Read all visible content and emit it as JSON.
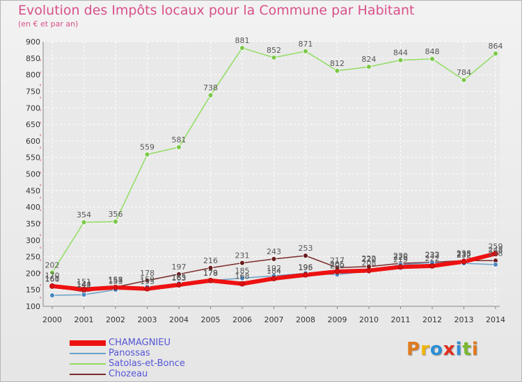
{
  "title": "Evolution des Impôts locaux pour la Commune par Habitant",
  "subtitle": "(en € et par an)",
  "logo": {
    "text": "Proxiti",
    "colors": [
      "#e07a1e",
      "#f2b500",
      "#2d8fd6",
      "#e0301e",
      "#2d8fd6",
      "#7ab82e",
      "#e07a1e"
    ]
  },
  "chart_data": {
    "type": "line",
    "title": "Evolution des Impôts locaux pour la Commune par Habitant",
    "subtitle": "(en € et par an)",
    "xlabel": "",
    "ylabel": "",
    "ylim": [
      100,
      900
    ],
    "yticks": [
      100,
      150,
      200,
      250,
      300,
      350,
      400,
      450,
      500,
      550,
      600,
      650,
      700,
      750,
      800,
      850,
      900
    ],
    "grid": true,
    "legend_position": "bottom-left",
    "x": [
      "2000",
      "2001",
      "2002",
      "2003",
      "2004",
      "2005",
      "2006",
      "2007",
      "2008",
      "2009",
      "2010",
      "2011",
      "2012",
      "2013",
      "2014"
    ],
    "series": [
      {
        "name": "Satolas-et-Bonce",
        "color": "#90dd60",
        "marker": "#7cc84a",
        "width": 1.5,
        "labels": true,
        "values": [
          202,
          354,
          356,
          559,
          581,
          738,
          881,
          852,
          871,
          812,
          824,
          844,
          848,
          784,
          864
        ]
      },
      {
        "name": "Chozeau",
        "color": "#7a2a2a",
        "marker": "#6b1e1e",
        "width": 1.5,
        "labels": true,
        "values": [
          160,
          144,
          158,
          178,
          197,
          216,
          231,
          243,
          253,
          217,
          220,
          230,
          233,
          238,
          238
        ]
      },
      {
        "name": "Panossas",
        "color": "#6aa0c8",
        "marker": "#4a88c0",
        "width": 1.5,
        "labels": false,
        "values": [
          133,
          135,
          150,
          158,
          169,
          178,
          185,
          192,
          200,
          196,
          206,
          226,
          232,
          230,
          226
        ]
      },
      {
        "name": "CHAMAGNIEU",
        "color": "#ee1111",
        "marker": "#dd1111",
        "width": 6,
        "labels": true,
        "values": [
          161,
          151,
          157,
          153,
          165,
          178,
          168,
          184,
          195,
          205,
          208,
          219,
          222,
          235,
          259
        ]
      }
    ],
    "extra_labels": [
      {
        "x": "2000",
        "y": 170,
        "text": "170"
      },
      {
        "x": "2001",
        "y": 142,
        "text": "142"
      },
      {
        "x": "2002",
        "y": 153,
        "text": "153"
      },
      {
        "x": "2003",
        "y": 159,
        "text": "159"
      },
      {
        "x": "2004",
        "y": 163,
        "text": "163"
      },
      {
        "x": "2005",
        "y": 179,
        "text": "179"
      },
      {
        "x": "2006",
        "y": 185,
        "text": "185"
      },
      {
        "x": "2007",
        "y": 192,
        "text": "192"
      },
      {
        "x": "2008",
        "y": 196,
        "text": "196"
      },
      {
        "x": "2009",
        "y": 200,
        "text": "200"
      },
      {
        "x": "2010",
        "y": 222,
        "text": "222"
      },
      {
        "x": "2011",
        "y": 226,
        "text": "226"
      },
      {
        "x": "2012",
        "y": 232,
        "text": "232"
      },
      {
        "x": "2013",
        "y": 232,
        "text": "232"
      },
      {
        "x": "2014",
        "y": 248,
        "text": "248"
      }
    ]
  },
  "legend": [
    {
      "label": "CHAMAGNIEU",
      "color": "#ee1111",
      "thick": true
    },
    {
      "label": "Panossas",
      "color": "#6aa0c8",
      "thick": false
    },
    {
      "label": "Satolas-et-Bonce",
      "color": "#90dd60",
      "thick": false
    },
    {
      "label": "Chozeau",
      "color": "#7a2a2a",
      "thick": false
    }
  ]
}
